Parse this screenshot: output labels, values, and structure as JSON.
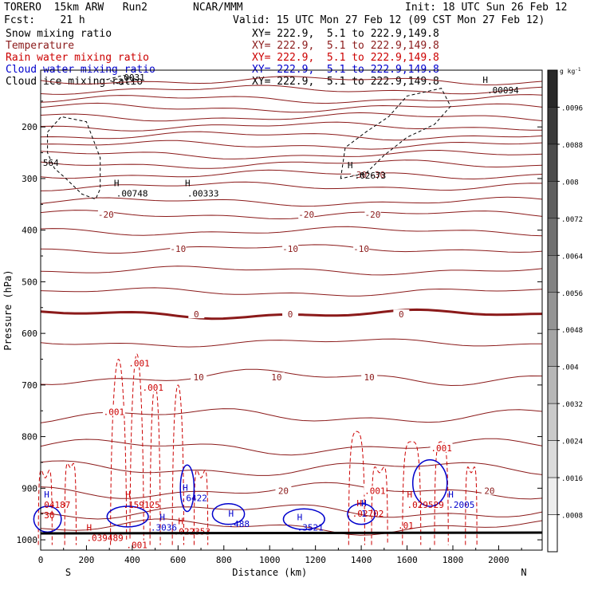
{
  "header": {
    "model": "TORERO  15km ARW   Run2",
    "center": "NCAR/MMM",
    "init": "Init: 18 UTC Sun 26 Feb 12",
    "fcst": "Fcst:    21 h",
    "valid": "Valid: 15 UTC Mon 27 Feb 12 (09 CST Mon 27 Feb 12)"
  },
  "legend": [
    {
      "name": "Snow mixing ratio",
      "color": "#000000",
      "xy": "XY= 222.9,  5.1 to 222.9,149.8"
    },
    {
      "name": "Temperature",
      "color": "#8b1a1a",
      "xy": "XY= 222.9,  5.1 to 222.9,149.8"
    },
    {
      "name": "Rain water mixing ratio",
      "color": "#cc0000",
      "xy": "XY= 222.9,  5.1 to 222.9,149.8"
    },
    {
      "name": "Cloud water mixing ratio",
      "color": "#0000cc",
      "xy": "XY= 222.9,  5.1 to 222.9,149.8"
    },
    {
      "name": "Cloud ice mixing ratio",
      "color": "#000000",
      "xy": "XY= 222.9,  5.1 to 222.9,149.8"
    }
  ],
  "chart_data": {
    "type": "contour",
    "xlabel": "Distance (km)",
    "ylabel": "Pressure (hPa)",
    "xlim": [
      0,
      2190
    ],
    "ylim": [
      1020,
      90
    ],
    "x_ticks": [
      0,
      200,
      400,
      600,
      800,
      1000,
      1200,
      1400,
      1600,
      1800,
      2000
    ],
    "y_ticks": [
      200,
      300,
      400,
      500,
      600,
      700,
      800,
      900,
      1000
    ],
    "x_end_labels": {
      "left": "S",
      "right": "N"
    },
    "colorbar": {
      "unit": "g kg",
      "unit_sup": "-1",
      "labels": [
        ".0096",
        ".0088",
        ".008",
        ".0072",
        ".0064",
        ".0056",
        ".0048",
        ".004",
        ".0032",
        ".0024",
        ".0016",
        ".0008"
      ],
      "range": [
        0,
        0.0104
      ]
    },
    "temperature_isotherms": [
      {
        "p": 110
      },
      {
        "p": 128
      },
      {
        "p": 146
      },
      {
        "p": 163
      },
      {
        "p": 181
      },
      {
        "p": 199
      },
      {
        "p": 217
      },
      {
        "p": 235
      },
      {
        "p": 254
      },
      {
        "p": 272
      },
      {
        "p": 292,
        "label": "-30",
        "label_x": [
          1390,
          1470
        ]
      },
      {
        "p": 315
      },
      {
        "p": 345
      },
      {
        "p": 370,
        "label": "-20",
        "label_x": [
          285,
          1160,
          1450
        ]
      },
      {
        "p": 402
      },
      {
        "p": 436,
        "label": "-10",
        "label_x": [
          600,
          1090,
          1400
        ]
      },
      {
        "p": 478
      },
      {
        "p": 520
      },
      {
        "p": 563,
        "label": "0",
        "label_x": [
          680,
          1090,
          1575
        ],
        "bold": true
      },
      {
        "p": 618
      },
      {
        "p": 685,
        "label": "10",
        "label_x": [
          690,
          1030,
          1435
        ]
      },
      {
        "p": 760
      },
      {
        "p": 820
      },
      {
        "p": 862
      },
      {
        "p": 905,
        "label": "20",
        "label_x": [
          1060,
          1960
        ]
      },
      {
        "p": 945
      },
      {
        "p": 975
      }
    ],
    "rain_labels": [
      {
        "x": 430,
        "p": 658,
        "text": ".001"
      },
      {
        "x": 490,
        "p": 705,
        "text": ".001"
      },
      {
        "x": 320,
        "p": 752,
        "text": ".001"
      },
      {
        "x": 1750,
        "p": 822,
        "text": ".001"
      },
      {
        "x": 1460,
        "p": 905,
        "text": ".001"
      },
      {
        "x": 420,
        "p": 1010,
        "text": ".001"
      }
    ],
    "max_labels": [
      {
        "x": 15,
        "p": 918,
        "text": "H",
        "color": "#0000cc"
      },
      {
        "x": 15,
        "p": 938,
        "text": "04187",
        "color": "#cc0000"
      },
      {
        "x": 15,
        "p": 958,
        "text": "30",
        "color": "#cc0000"
      },
      {
        "x": 370,
        "p": 918,
        "text": "H",
        "color": "#cc0000"
      },
      {
        "x": 360,
        "p": 938,
        "text": ".159125",
        "color": "#cc0000"
      },
      {
        "x": 200,
        "p": 982,
        "text": "H",
        "color": "#cc0000"
      },
      {
        "x": 200,
        "p": 1002,
        "text": ".039489",
        "color": "#cc0000"
      },
      {
        "x": 520,
        "p": 962,
        "text": "H",
        "color": "#0000cc"
      },
      {
        "x": 480,
        "p": 982,
        "text": ".3036",
        "color": "#0000cc"
      },
      {
        "x": 600,
        "p": 970,
        "text": "H",
        "color": "#cc0000"
      },
      {
        "x": 580,
        "p": 990,
        "text": ".022353",
        "color": "#cc0000"
      },
      {
        "x": 620,
        "p": 905,
        "text": "H",
        "color": "#0000cc"
      },
      {
        "x": 612,
        "p": 925,
        "text": ".6422",
        "color": "#0000cc"
      },
      {
        "x": 820,
        "p": 955,
        "text": "H",
        "color": "#0000cc"
      },
      {
        "x": 820,
        "p": 975,
        "text": ".488",
        "color": "#0000cc"
      },
      {
        "x": 1120,
        "p": 962,
        "text": "H",
        "color": "#0000cc"
      },
      {
        "x": 1120,
        "p": 982,
        "text": ".3521",
        "color": "#0000cc"
      },
      {
        "x": 1380,
        "p": 935,
        "text": "H",
        "color": "#cc0000"
      },
      {
        "x": 1400,
        "p": 935,
        "text": "H",
        "color": "#0000cc"
      },
      {
        "x": 1360,
        "p": 955,
        "text": ".02702",
        "color": "#cc0000"
      },
      {
        "x": 1400,
        "p": 955,
        "text": "1",
        "color": "#0000cc"
      },
      {
        "x": 1600,
        "p": 918,
        "text": "H",
        "color": "#cc0000"
      },
      {
        "x": 1600,
        "p": 938,
        "text": ".029529",
        "color": "#cc0000"
      },
      {
        "x": 1780,
        "p": 918,
        "text": "H",
        "color": "#0000cc"
      },
      {
        "x": 1780,
        "p": 938,
        "text": ".2005",
        "color": "#0000cc"
      },
      {
        "x": 1560,
        "p": 978,
        "text": ".01",
        "color": "#cc0000"
      }
    ],
    "ice_labels": [
      {
        "x": 320,
        "p": 315,
        "text": "H"
      },
      {
        "x": 330,
        "p": 335,
        "text": ".00748"
      },
      {
        "x": 630,
        "p": 315,
        "text": "H"
      },
      {
        "x": 640,
        "p": 335,
        "text": ".00333"
      },
      {
        "x": 1340,
        "p": 280,
        "text": "H"
      },
      {
        "x": 1370,
        "p": 300,
        "text": ".02673"
      },
      {
        "x": 1930,
        "p": 115,
        "text": "H"
      },
      {
        "x": 1950,
        "p": 135,
        "text": ".00094"
      },
      {
        "x": 340,
        "p": 110,
        "text": ".0031"
      },
      {
        "x": 10,
        "p": 275,
        "text": "564"
      }
    ]
  }
}
